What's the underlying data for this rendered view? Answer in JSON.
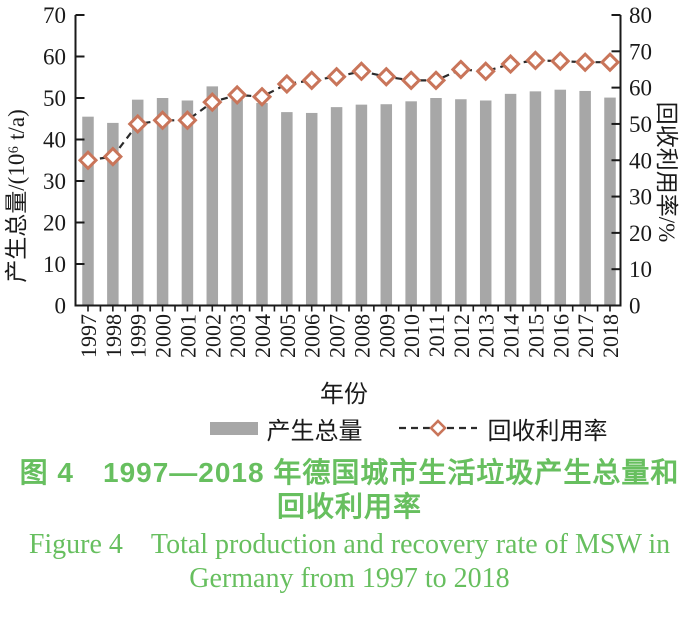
{
  "colors": {
    "bar": "#a7a7a7",
    "marker_stroke": "#c9755a",
    "marker_fill": "#ffffff",
    "line": "#2b2b2b",
    "axis": "#1a1a1a",
    "caption_green": "#67bf5f",
    "text": "#1a1a1a"
  },
  "chart_data": {
    "type": "bar+line",
    "categories": [
      "1997",
      "1998",
      "1999",
      "2000",
      "2001",
      "2002",
      "2003",
      "2004",
      "2005",
      "2006",
      "2007",
      "2008",
      "2009",
      "2010",
      "2011",
      "2012",
      "2013",
      "2014",
      "2015",
      "2016",
      "2017",
      "2018"
    ],
    "series": [
      {
        "name": "产生总量",
        "type": "bar",
        "axis": "left",
        "values": [
          45.5,
          44.0,
          49.6,
          50.0,
          49.4,
          52.8,
          49.6,
          48.8,
          46.6,
          46.4,
          47.8,
          48.4,
          48.5,
          49.2,
          50.0,
          49.7,
          49.4,
          51.0,
          51.6,
          52.0,
          51.7,
          50.1
        ]
      },
      {
        "name": "回收利用率",
        "type": "line",
        "axis": "right",
        "values": [
          40,
          41,
          50,
          51,
          51,
          56,
          58,
          57.5,
          61,
          62,
          63,
          64.5,
          63,
          62,
          62,
          65,
          64.5,
          66.5,
          67.5,
          67.3,
          67,
          67
        ]
      }
    ],
    "left_axis": {
      "label": "产生总量/(10⁶ t/a)",
      "ticks": [
        0,
        10,
        20,
        30,
        40,
        50,
        60,
        70
      ],
      "range": [
        0,
        70
      ]
    },
    "right_axis": {
      "label": "回收利用率/%",
      "ticks": [
        0,
        10,
        20,
        30,
        40,
        50,
        60,
        70,
        80
      ],
      "range": [
        0,
        80
      ]
    },
    "x_axis": {
      "label": "年份"
    },
    "grid": false,
    "legend_position": "bottom"
  },
  "legend": {
    "bar_label": "产生总量",
    "line_label": "回收利用率"
  },
  "caption": {
    "zh_line1": "图 4　1997—2018 年德国城市生活垃圾产生总量和",
    "zh_line2": "回收利用率",
    "en_line1": "Figure 4　Total production and recovery rate of MSW in",
    "en_line2": "Germany from 1997 to 2018"
  }
}
